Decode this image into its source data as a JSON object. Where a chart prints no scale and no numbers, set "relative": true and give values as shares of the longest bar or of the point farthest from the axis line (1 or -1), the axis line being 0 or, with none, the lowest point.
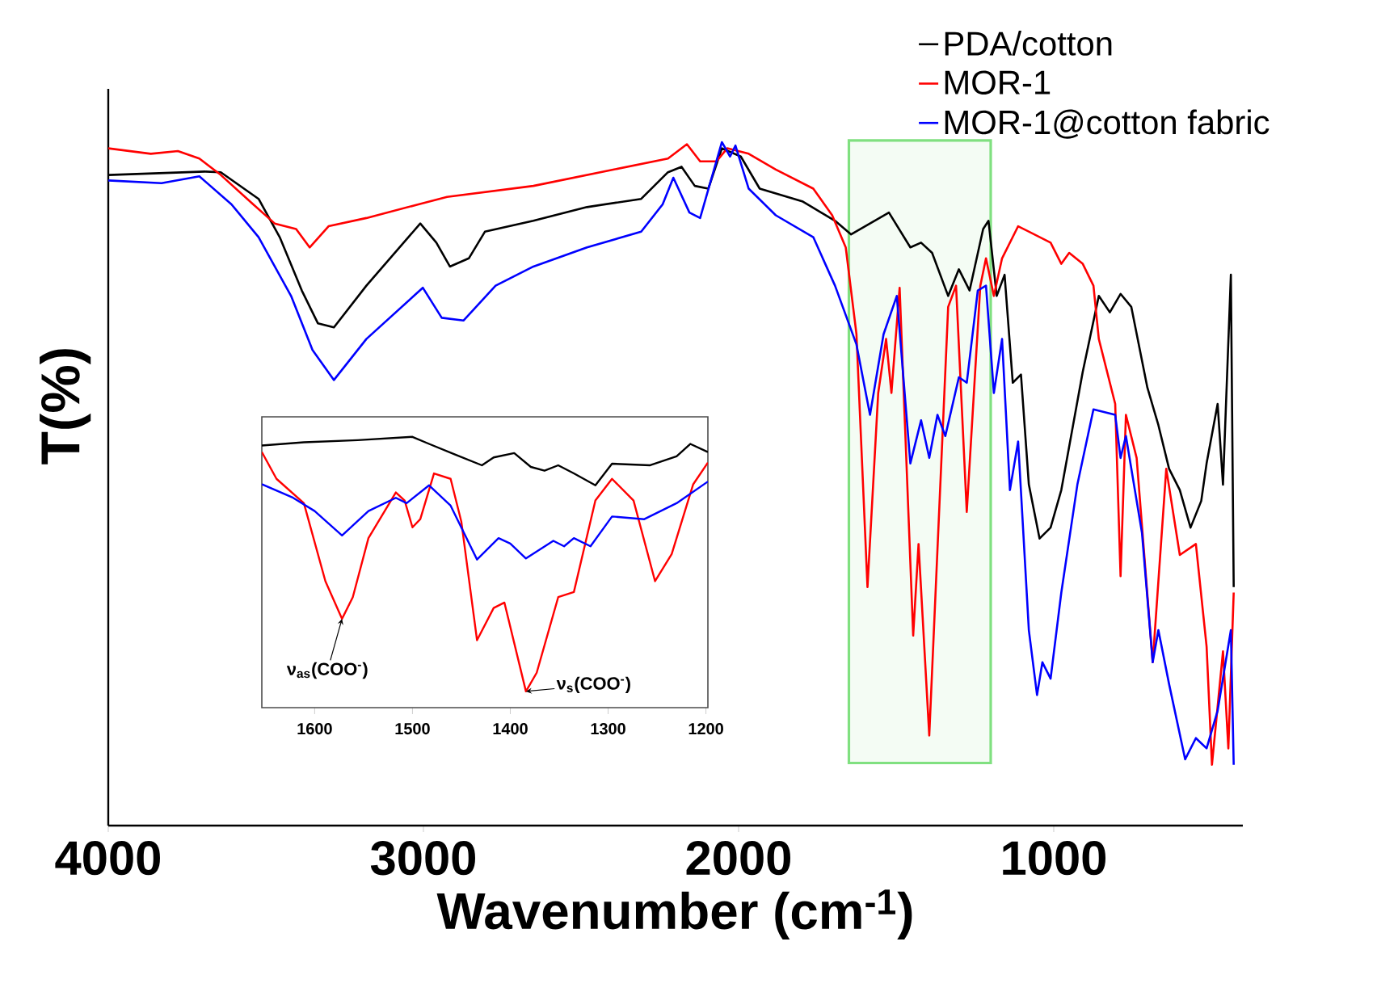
{
  "chart_data": [
    {
      "type": "line",
      "relative": true,
      "xlabel": "Wavenumber (cm$^{-1}$)",
      "ylabel": "T(%)",
      "xlim": [
        4000,
        400
      ],
      "xticks": [
        4000,
        3000,
        2000,
        1000
      ],
      "legend": "top right",
      "bands": [
        {
          "axis": "x",
          "from": 1650,
          "to": 1200,
          "color": "#80e080"
        }
      ],
      "series": [
        {
          "name": "PDA/cotton",
          "color": "#000000",
          "x": [
            4000,
            3694,
            3643,
            3523,
            3456,
            3386,
            3335,
            3284,
            3181,
            3010,
            2959,
            2916,
            2856,
            2805,
            2651,
            2481,
            2309,
            2224,
            2181,
            2139,
            2096,
            2053,
            1993,
            1933,
            1796,
            1694,
            1643,
            1523,
            1455,
            1421,
            1386,
            1335,
            1301,
            1267,
            1224,
            1207,
            1181,
            1156,
            1130,
            1104,
            1079,
            1045,
            1010,
            976,
            908,
            857,
            822,
            788,
            754,
            703,
            668,
            634,
            600,
            566,
            532,
            515,
            480,
            463,
            438,
            429
          ],
          "values": [
            0.952,
            0.957,
            0.956,
            0.917,
            0.861,
            0.783,
            0.735,
            0.729,
            0.79,
            0.881,
            0.853,
            0.818,
            0.83,
            0.869,
            0.885,
            0.905,
            0.917,
            0.956,
            0.964,
            0.936,
            0.932,
            0.991,
            0.979,
            0.932,
            0.913,
            0.885,
            0.865,
            0.897,
            0.846,
            0.853,
            0.838,
            0.775,
            0.814,
            0.783,
            0.873,
            0.885,
            0.775,
            0.806,
            0.648,
            0.66,
            0.499,
            0.42,
            0.436,
            0.491,
            0.664,
            0.775,
            0.751,
            0.778,
            0.759,
            0.641,
            0.586,
            0.522,
            0.491,
            0.436,
            0.475,
            0.53,
            0.617,
            0.499,
            0.806,
            0.349
          ]
        },
        {
          "name": "MOR-1",
          "color": "#ff0000",
          "x": [
            4000,
            3865,
            3779,
            3711,
            3643,
            3540,
            3472,
            3404,
            3361,
            3301,
            3181,
            2925,
            2651,
            2395,
            2224,
            2164,
            2122,
            2070,
            2036,
            1968,
            1882,
            1763,
            1703,
            1660,
            1626,
            1591,
            1557,
            1532,
            1515,
            1489,
            1446,
            1429,
            1395,
            1335,
            1310,
            1276,
            1233,
            1215,
            1190,
            1164,
            1113,
            1010,
            976,
            951,
            908,
            874,
            857,
            805,
            788,
            771,
            737,
            686,
            643,
            600,
            549,
            515,
            498,
            463,
            446,
            429
          ],
          "values": [
            0.991,
            0.983,
            0.987,
            0.976,
            0.952,
            0.909,
            0.881,
            0.873,
            0.846,
            0.877,
            0.889,
            0.92,
            0.936,
            0.96,
            0.976,
            0.997,
            0.972,
            0.972,
            0.991,
            0.983,
            0.96,
            0.932,
            0.893,
            0.846,
            0.719,
            0.349,
            0.633,
            0.712,
            0.633,
            0.787,
            0.278,
            0.412,
            0.132,
            0.759,
            0.79,
            0.459,
            0.79,
            0.83,
            0.775,
            0.83,
            0.877,
            0.853,
            0.822,
            0.838,
            0.822,
            0.79,
            0.712,
            0.617,
            0.365,
            0.601,
            0.538,
            0.239,
            0.522,
            0.396,
            0.412,
            0.262,
            0.089,
            0.255,
            0.113,
            0.341
          ]
        },
        {
          "name": "MOR-1@cotton fabric",
          "color": "#0000ff",
          "x": [
            4000,
            3831,
            3711,
            3609,
            3523,
            3420,
            3352,
            3284,
            3181,
            3002,
            2942,
            2873,
            2771,
            2651,
            2481,
            2309,
            2241,
            2207,
            2156,
            2122,
            2053,
            2027,
            2010,
            1968,
            1882,
            1763,
            1694,
            1626,
            1583,
            1540,
            1498,
            1455,
            1421,
            1395,
            1369,
            1344,
            1301,
            1276,
            1241,
            1215,
            1190,
            1164,
            1139,
            1113,
            1079,
            1053,
            1036,
            1010,
            976,
            925,
            874,
            805,
            788,
            771,
            720,
            686,
            668,
            634,
            583,
            549,
            515,
            480,
            438,
            429
          ],
          "values": [
            0.944,
            0.94,
            0.95,
            0.909,
            0.861,
            0.775,
            0.696,
            0.652,
            0.712,
            0.787,
            0.743,
            0.739,
            0.79,
            0.818,
            0.846,
            0.869,
            0.909,
            0.948,
            0.897,
            0.889,
            1.0,
            0.979,
            0.995,
            0.932,
            0.893,
            0.861,
            0.79,
            0.704,
            0.601,
            0.719,
            0.775,
            0.53,
            0.593,
            0.538,
            0.601,
            0.57,
            0.656,
            0.648,
            0.783,
            0.79,
            0.633,
            0.712,
            0.491,
            0.562,
            0.286,
            0.191,
            0.239,
            0.215,
            0.341,
            0.499,
            0.609,
            0.601,
            0.538,
            0.57,
            0.428,
            0.239,
            0.286,
            0.207,
            0.097,
            0.128,
            0.113,
            0.168,
            0.286,
            0.089
          ]
        }
      ]
    },
    {
      "type": "line",
      "relative": true,
      "xlim": [
        1654,
        1198
      ],
      "xticks": [
        1600,
        1500,
        1400,
        1300,
        1200
      ],
      "annotations": [
        {
          "text": "ν$_{as}$(COO$^{-}$)",
          "x": 1572,
          "y": 0.328
        },
        {
          "text": "ν$_{s}$(COO$^{-}$)",
          "x": 1384,
          "y": 0.06
        }
      ],
      "series": [
        {
          "color": "#000000",
          "x": [
            1654,
            1611,
            1556,
            1500,
            1483,
            1456,
            1429,
            1417,
            1396,
            1379,
            1365,
            1351,
            1335,
            1313,
            1296,
            1257,
            1230,
            1216,
            1198
          ],
          "values": [
            0.968,
            0.98,
            0.988,
            1.0,
            0.974,
            0.934,
            0.895,
            0.924,
            0.94,
            0.889,
            0.875,
            0.895,
            0.865,
            0.821,
            0.901,
            0.895,
            0.928,
            0.974,
            0.944
          ]
        },
        {
          "color": "#ff0000",
          "x": [
            1654,
            1639,
            1611,
            1589,
            1572,
            1561,
            1545,
            1517,
            1508,
            1500,
            1492,
            1478,
            1461,
            1450,
            1434,
            1417,
            1406,
            1384,
            1373,
            1351,
            1335,
            1313,
            1296,
            1274,
            1252,
            1235,
            1213,
            1198
          ],
          "values": [
            0.944,
            0.845,
            0.755,
            0.467,
            0.328,
            0.408,
            0.626,
            0.795,
            0.765,
            0.666,
            0.696,
            0.865,
            0.845,
            0.686,
            0.249,
            0.368,
            0.388,
            0.06,
            0.129,
            0.408,
            0.427,
            0.765,
            0.845,
            0.765,
            0.467,
            0.567,
            0.825,
            0.905
          ]
        },
        {
          "color": "#0000ff",
          "x": [
            1654,
            1622,
            1600,
            1572,
            1545,
            1517,
            1506,
            1483,
            1461,
            1434,
            1412,
            1400,
            1384,
            1356,
            1345,
            1335,
            1318,
            1296,
            1263,
            1230,
            1198
          ],
          "values": [
            0.825,
            0.775,
            0.726,
            0.636,
            0.726,
            0.775,
            0.755,
            0.821,
            0.746,
            0.547,
            0.626,
            0.606,
            0.551,
            0.616,
            0.596,
            0.626,
            0.596,
            0.706,
            0.696,
            0.755,
            0.835
          ]
        }
      ]
    }
  ]
}
